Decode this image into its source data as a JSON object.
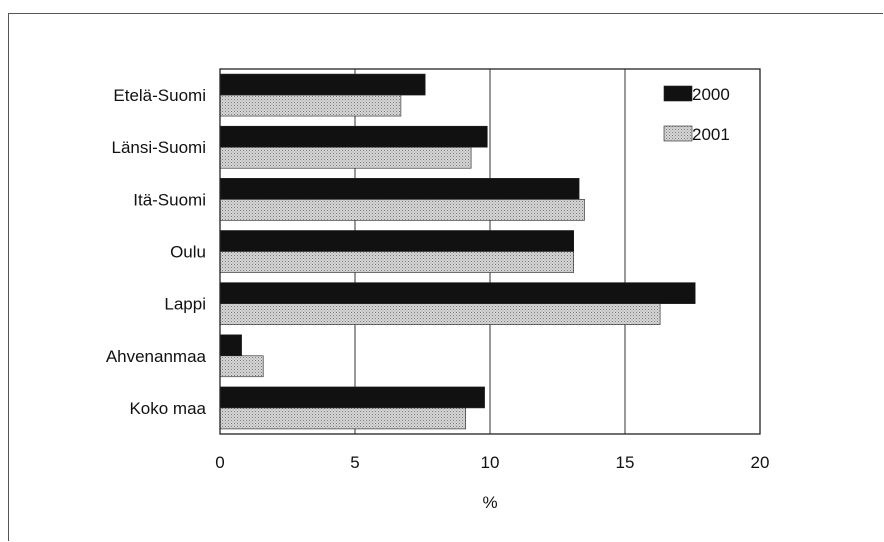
{
  "chart_data": {
    "type": "bar",
    "orientation": "horizontal",
    "categories": [
      "Etelä-Suomi",
      "Länsi-Suomi",
      "Itä-Suomi",
      "Oulu",
      "Lappi",
      "Ahvenanmaa",
      "Koko maa"
    ],
    "series": [
      {
        "name": "2000",
        "values": [
          7.6,
          9.9,
          13.3,
          13.1,
          17.6,
          0.8,
          9.8
        ],
        "color": "#111111"
      },
      {
        "name": "2001",
        "values": [
          6.7,
          9.3,
          13.5,
          13.1,
          16.3,
          1.6,
          9.1
        ],
        "color": "#c4c4c4"
      }
    ],
    "x_ticks": [
      0,
      5,
      10,
      15,
      20
    ],
    "xlim": [
      0,
      20
    ],
    "xlabel": "%",
    "ylabel": "",
    "title": "",
    "grid": "vertical gridlines",
    "legend_position": "top-right"
  }
}
